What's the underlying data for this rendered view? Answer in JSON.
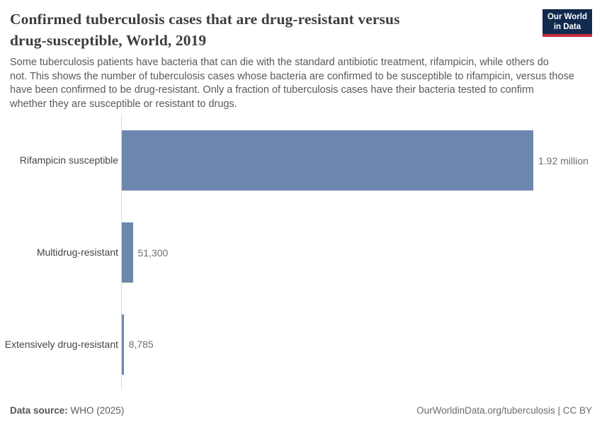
{
  "branding": {
    "logo_line1": "Our World",
    "logo_line2": "in Data",
    "navy": "#112a4e",
    "red": "#c22b3a"
  },
  "header": {
    "title": "Confirmed tuberculosis cases that are drug-resistant versus drug-susceptible, World, 2019",
    "title_lines": [
      "Confirmed tuberculosis cases that are drug-resistant versus",
      "drug-susceptible, World, 2019"
    ],
    "subtitle": "Some tuberculosis patients have bacteria that can die with the standard antibiotic treatment, rifampicin, while others do not. This shows the number of tuberculosis cases whose bacteria are confirmed to be susceptible to rifampicin, versus those have been confirmed to be drug-resistant. Only a fraction of tuberculosis cases have their bacteria tested to confirm whether they are susceptible or resistant to drugs.",
    "subtitle_lines": [
      "Some tuberculosis patients have bacteria that can die with the standard antibiotic treatment, rifampicin, while others do",
      "not. This shows the number of tuberculosis cases whose bacteria are confirmed to be susceptible to rifampicin, versus those",
      "have been confirmed to be drug-resistant. Only a fraction of tuberculosis cases have their bacteria tested to confirm",
      "whether they are susceptible or resistant to drugs."
    ]
  },
  "chart_data": {
    "type": "bar",
    "orientation": "horizontal",
    "title": "Confirmed tuberculosis cases that are drug-resistant versus drug-susceptible, World, 2019",
    "categories": [
      "Rifampicin susceptible",
      "Multidrug-resistant",
      "Extensively drug-resistant"
    ],
    "values": [
      1920000,
      51300,
      8785
    ],
    "value_labels": [
      "1.92 million",
      "51,300",
      "8,785"
    ],
    "xlabel": "",
    "ylabel": "",
    "xlim": [
      0,
      1920000
    ],
    "grid": false,
    "legend": "none",
    "bar_color": "#6e87ae"
  },
  "footer": {
    "datasource_label": "Data source:",
    "datasource_value": " WHO (2025)",
    "attribution": "OurWorldinData.org/tuberculosis | CC BY"
  }
}
